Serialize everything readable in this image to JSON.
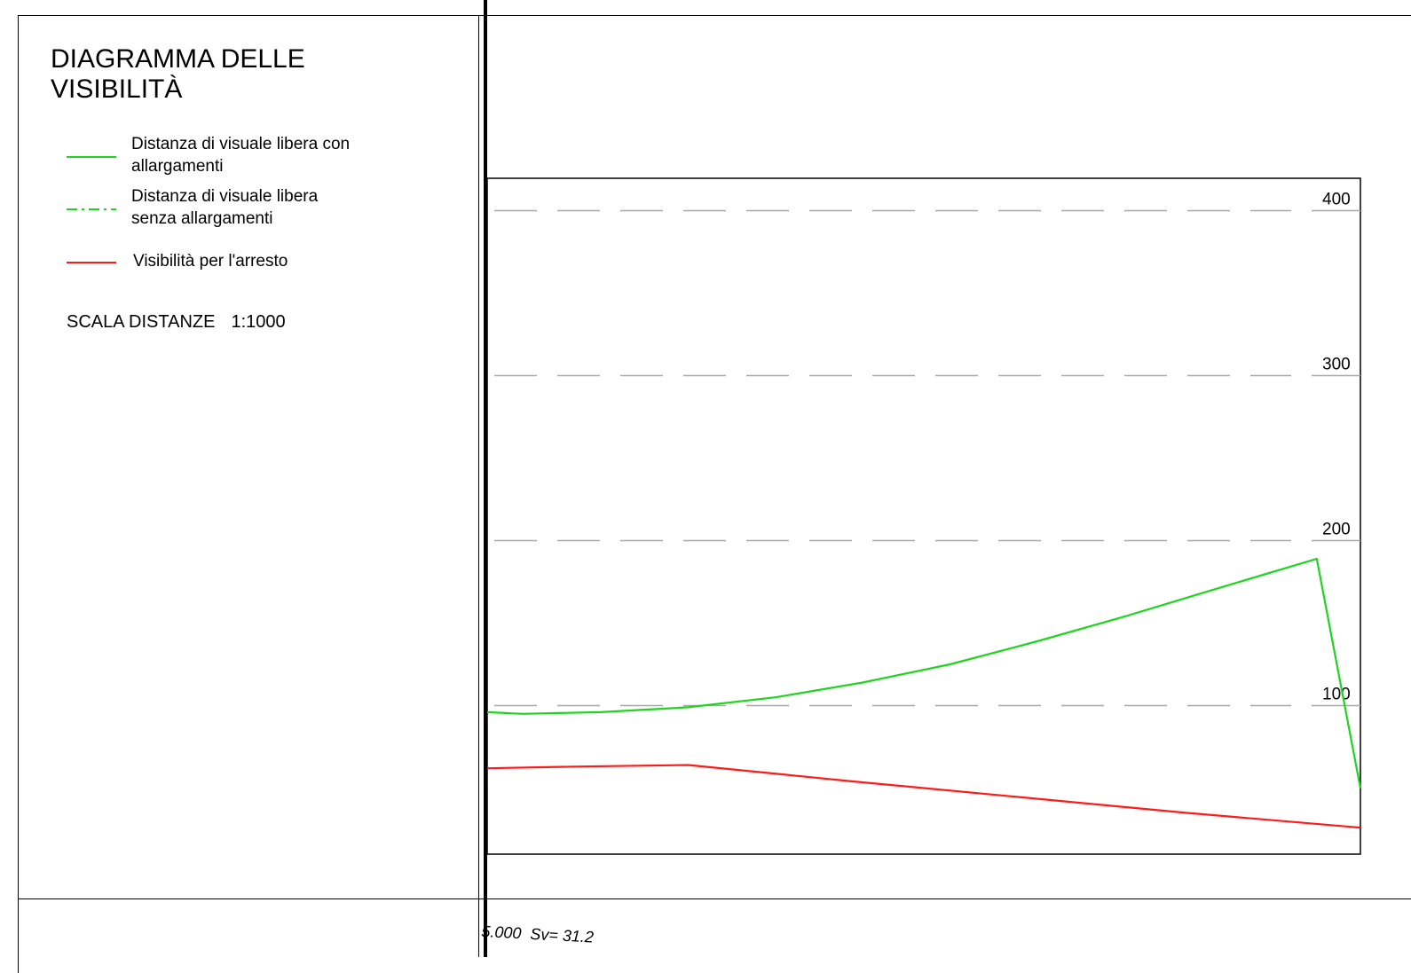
{
  "title": "DIAGRAMMA DELLE VISIBILITÀ",
  "legend": [
    {
      "label": "Distanza di visuale libera con allargamenti",
      "color": "#1fd41f",
      "style": "solid"
    },
    {
      "label": "Distanza di visuale libera senza allargamenti",
      "color": "#1fd41f",
      "style": "dash-dot"
    },
    {
      "label": "Visibilità per l'arresto",
      "color": "#ff1a1a",
      "style": "solid"
    }
  ],
  "scale": {
    "label": "SCALA DISTANZE",
    "value": "1:1000"
  },
  "bottom_note": {
    "left": "5.000",
    "right": "Sv= 31.2"
  },
  "chart_data": {
    "type": "line",
    "yticks": [
      100,
      200,
      300,
      400
    ],
    "ylim": [
      -90,
      435
    ],
    "grid": "dashed-horizontal",
    "series": [
      {
        "name": "Distanza di visuale libera con allargamenti",
        "color": "#1fd41f",
        "x": [
          0,
          4,
          13,
          23,
          33,
          43,
          53,
          63,
          73,
          83,
          95,
          100
        ],
        "y": [
          96,
          95,
          96,
          99,
          105,
          114,
          125,
          139,
          154,
          170,
          189,
          50
        ]
      },
      {
        "name": "Visibilità per l'arresto",
        "color": "#ff1a1a",
        "x": [
          0,
          10,
          23,
          42,
          60,
          80,
          100
        ],
        "y": [
          62,
          63,
          64,
          54,
          45,
          35,
          26
        ]
      }
    ]
  }
}
